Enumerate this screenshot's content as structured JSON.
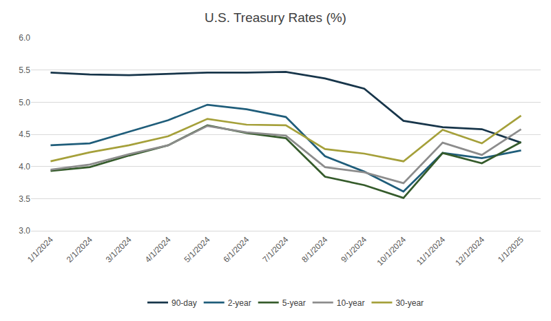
{
  "chart_data": {
    "type": "line",
    "title": "U.S. Treasury Rates (%)",
    "categories": [
      "1/1/2024",
      "2/1/2024",
      "3/1/2024",
      "4/1/2024",
      "5/1/2024",
      "6/1/2024",
      "7/1/2024",
      "8/1/2024",
      "9/1/2024",
      "10/1/2024",
      "11/1/2024",
      "12/1/2024",
      "1/1/2025"
    ],
    "series": [
      {
        "name": "90-day",
        "color": "#17354a",
        "values": [
          5.46,
          5.43,
          5.42,
          5.44,
          5.46,
          5.46,
          5.47,
          5.37,
          5.21,
          4.71,
          4.61,
          4.58,
          4.37
        ]
      },
      {
        "name": "2-year",
        "color": "#1f5d7a",
        "values": [
          4.33,
          4.36,
          4.54,
          4.72,
          4.96,
          4.89,
          4.77,
          4.16,
          3.92,
          3.61,
          4.21,
          4.13,
          4.25
        ]
      },
      {
        "name": "5-year",
        "color": "#355b2b",
        "values": [
          3.93,
          3.99,
          4.17,
          4.33,
          4.64,
          4.52,
          4.44,
          3.84,
          3.71,
          3.51,
          4.21,
          4.05,
          4.38
        ]
      },
      {
        "name": "10-year",
        "color": "#8c8c8c",
        "values": [
          3.95,
          4.03,
          4.19,
          4.33,
          4.63,
          4.53,
          4.48,
          3.99,
          3.91,
          3.74,
          4.37,
          4.18,
          4.58
        ]
      },
      {
        "name": "30-year",
        "color": "#a5a03a",
        "values": [
          4.08,
          4.22,
          4.33,
          4.47,
          4.74,
          4.65,
          4.64,
          4.27,
          4.2,
          4.08,
          4.57,
          4.36,
          4.79
        ]
      }
    ],
    "ylim": [
      3.0,
      6.0
    ],
    "yticks": [
      {
        "value": 3.0,
        "label": "3.0"
      },
      3.5,
      {
        "value": 4.0,
        "label": "4.0"
      },
      4.5,
      {
        "value": 5.0,
        "label": "5.0"
      },
      5.5,
      {
        "value": 6.0,
        "label": "6.0"
      }
    ],
    "grid": true,
    "legend": "bottom"
  }
}
